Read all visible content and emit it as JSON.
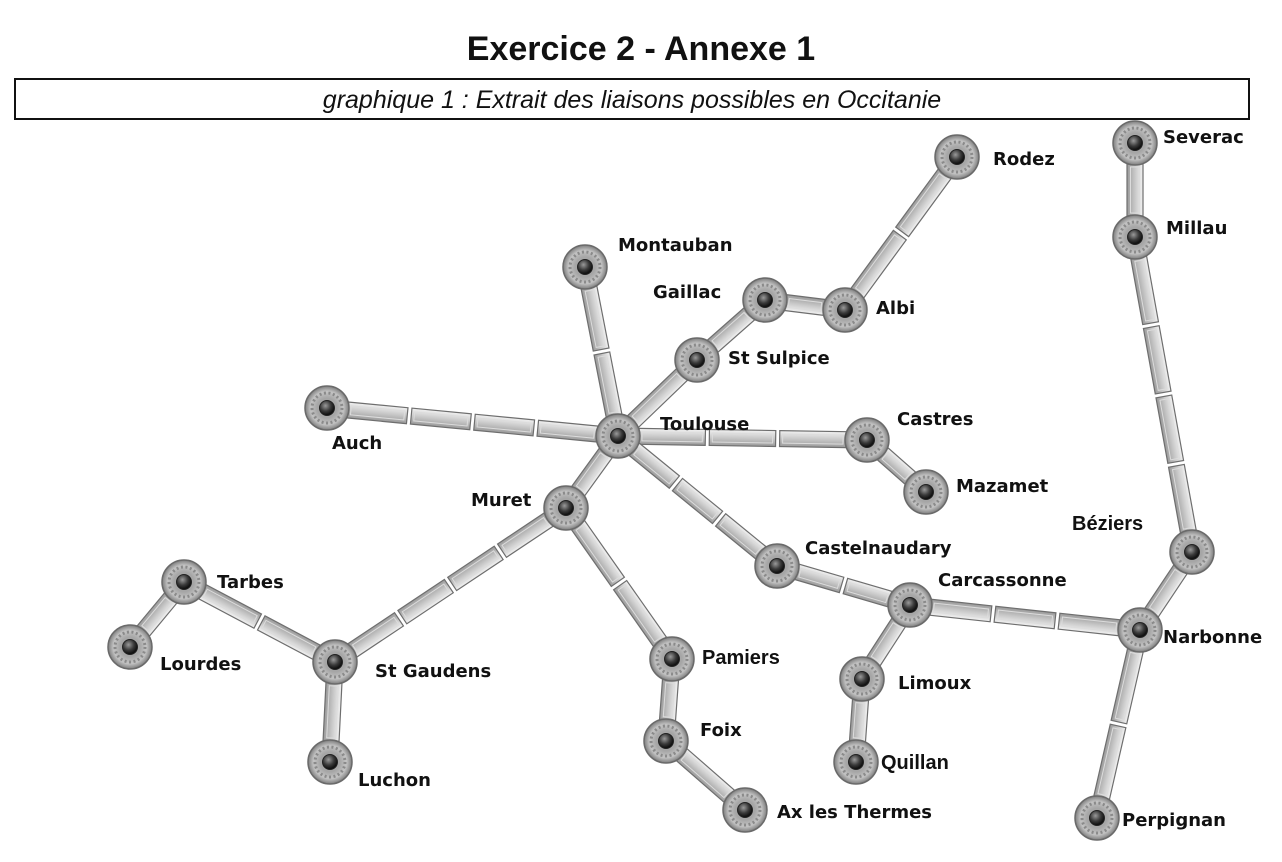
{
  "header": {
    "title": "Exercice 2 - Annexe 1",
    "subtitle": "graphique 1 : Extrait des liaisons possibles en Occitanie"
  },
  "cities": [
    {
      "id": "severac",
      "label": "Severac"
    },
    {
      "id": "rodez",
      "label": "Rodez"
    },
    {
      "id": "millau",
      "label": "Millau"
    },
    {
      "id": "montauban",
      "label": "Montauban"
    },
    {
      "id": "gaillac",
      "label": "Gaillac"
    },
    {
      "id": "albi",
      "label": "Albi"
    },
    {
      "id": "stsulpice",
      "label": "St Sulpice"
    },
    {
      "id": "auch",
      "label": "Auch"
    },
    {
      "id": "toulouse",
      "label": "Toulouse"
    },
    {
      "id": "castres",
      "label": "Castres"
    },
    {
      "id": "mazamet",
      "label": "Mazamet"
    },
    {
      "id": "muret",
      "label": "Muret"
    },
    {
      "id": "beziers",
      "label": "Béziers"
    },
    {
      "id": "castelnaudary",
      "label": "Castelnaudary"
    },
    {
      "id": "carcassonne",
      "label": "Carcassonne"
    },
    {
      "id": "tarbes",
      "label": "Tarbes"
    },
    {
      "id": "narbonne",
      "label": "Narbonne"
    },
    {
      "id": "lourdes",
      "label": "Lourdes"
    },
    {
      "id": "stgaudens",
      "label": "St Gaudens"
    },
    {
      "id": "pamiers",
      "label": "Pamiers"
    },
    {
      "id": "limoux",
      "label": "Limoux"
    },
    {
      "id": "foix",
      "label": "Foix"
    },
    {
      "id": "quillan",
      "label": "Quillan"
    },
    {
      "id": "luchon",
      "label": "Luchon"
    },
    {
      "id": "axlesthermes",
      "label": "Ax les Thermes"
    },
    {
      "id": "perpignan",
      "label": "Perpignan"
    }
  ],
  "connections": [
    [
      "severac",
      "millau"
    ],
    [
      "millau",
      "beziers"
    ],
    [
      "beziers",
      "narbonne"
    ],
    [
      "narbonne",
      "perpignan"
    ],
    [
      "narbonne",
      "carcassonne"
    ],
    [
      "rodez",
      "albi"
    ],
    [
      "albi",
      "gaillac"
    ],
    [
      "gaillac",
      "stsulpice"
    ],
    [
      "stsulpice",
      "toulouse"
    ],
    [
      "montauban",
      "toulouse"
    ],
    [
      "auch",
      "toulouse"
    ],
    [
      "toulouse",
      "castres"
    ],
    [
      "castres",
      "mazamet"
    ],
    [
      "toulouse",
      "muret"
    ],
    [
      "toulouse",
      "castelnaudary"
    ],
    [
      "castelnaudary",
      "carcassonne"
    ],
    [
      "carcassonne",
      "limoux"
    ],
    [
      "limoux",
      "quillan"
    ],
    [
      "muret",
      "pamiers"
    ],
    [
      "pamiers",
      "foix"
    ],
    [
      "foix",
      "axlesthermes"
    ],
    [
      "muret",
      "stgaudens"
    ],
    [
      "stgaudens",
      "tarbes"
    ],
    [
      "tarbes",
      "lourdes"
    ],
    [
      "stgaudens",
      "luchon"
    ]
  ]
}
